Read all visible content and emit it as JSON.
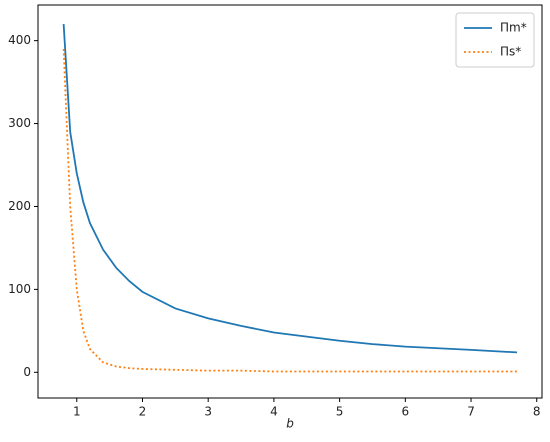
{
  "chart_data": {
    "type": "line",
    "xlabel": "b",
    "x": [
      0.8,
      0.9,
      1.0,
      1.1,
      1.2,
      1.4,
      1.6,
      1.8,
      2,
      2.5,
      3,
      3.5,
      4,
      4.5,
      5,
      5.5,
      6,
      6.5,
      7,
      7.7
    ],
    "series": [
      {
        "name": "Πm*",
        "color": "#1f77b4",
        "style": "solid",
        "values": [
          420,
          290,
          240,
          205,
          180,
          148,
          126,
          110,
          97,
          77,
          65,
          56,
          48,
          43,
          38,
          34,
          31,
          29,
          27,
          24
        ]
      },
      {
        "name": "Πs*",
        "color": "#ff7f0e",
        "style": "dotted",
        "values": [
          390,
          200,
          100,
          50,
          28,
          12,
          7,
          5,
          4,
          3,
          2,
          2,
          1,
          1,
          1,
          1,
          1,
          1,
          1,
          1
        ]
      }
    ],
    "xlim": [
      0.41,
      8.08
    ],
    "ylim": [
      -31,
      443
    ],
    "xticks": [
      1,
      2,
      3,
      4,
      5,
      6,
      7,
      8
    ],
    "yticks": [
      0,
      100,
      200,
      300,
      400
    ],
    "legend": "upper right"
  }
}
